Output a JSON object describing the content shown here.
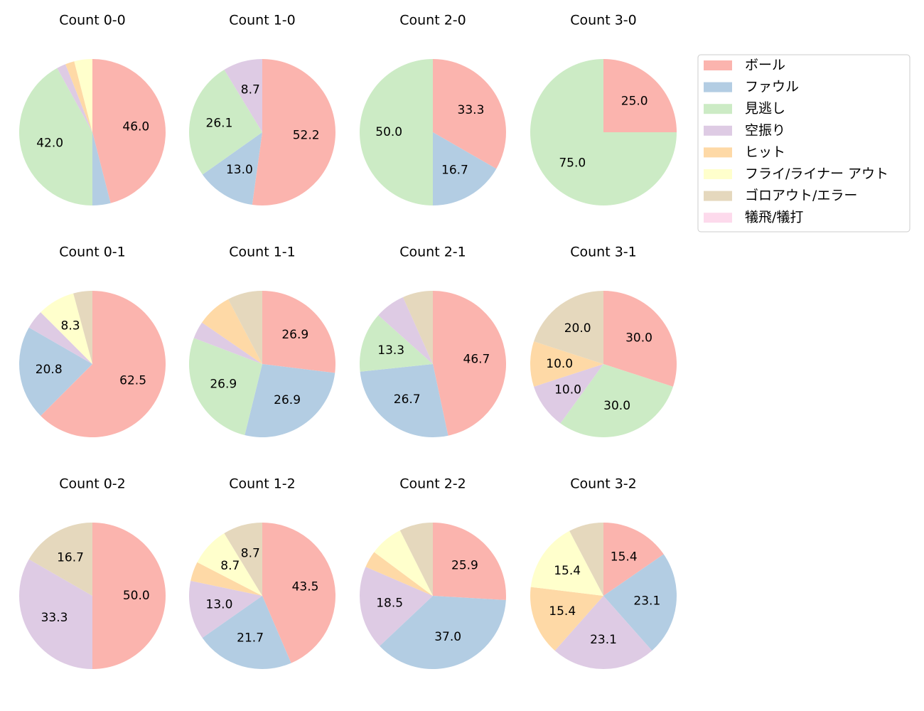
{
  "legend": {
    "labels": [
      "ボール",
      "ファウル",
      "見逃し",
      "空振り",
      "ヒット",
      "フライ/ライナー アウト",
      "ゴロアウト/エラー",
      "犠飛/犠打"
    ],
    "colors": [
      "#fbb4ae",
      "#b3cde3",
      "#ccebc5",
      "#decbe4",
      "#fed9a6",
      "#ffffcc",
      "#e5d8bd",
      "#fddaec"
    ]
  },
  "chart_data": [
    {
      "type": "pie",
      "title": "Count 0-0",
      "values": [
        46.0,
        4.0,
        42.0,
        2.0,
        2.0,
        4.0,
        0,
        0
      ],
      "value_labels": [
        "46.0",
        null,
        "42.0",
        null,
        null,
        null,
        null,
        null
      ]
    },
    {
      "type": "pie",
      "title": "Count 1-0",
      "values": [
        52.2,
        13.0,
        26.1,
        8.7,
        0,
        0,
        0,
        0
      ],
      "value_labels": [
        "52.2",
        "13.0",
        "26.1",
        "8.7",
        null,
        null,
        null,
        null
      ]
    },
    {
      "type": "pie",
      "title": "Count 2-0",
      "values": [
        33.3,
        16.7,
        50.0,
        0,
        0,
        0,
        0,
        0
      ],
      "value_labels": [
        "33.3",
        "16.7",
        "50.0",
        null,
        null,
        null,
        null,
        null
      ]
    },
    {
      "type": "pie",
      "title": "Count 3-0",
      "values": [
        25.0,
        0,
        75.0,
        0,
        0,
        0,
        0,
        0
      ],
      "value_labels": [
        "25.0",
        null,
        "75.0",
        null,
        null,
        null,
        null,
        null
      ]
    },
    {
      "type": "pie",
      "title": "Count 0-1",
      "values": [
        62.5,
        20.8,
        0,
        4.2,
        0,
        8.3,
        4.2,
        0
      ],
      "value_labels": [
        "62.5",
        "20.8",
        null,
        null,
        null,
        "8.3",
        null,
        null
      ]
    },
    {
      "type": "pie",
      "title": "Count 1-1",
      "values": [
        26.9,
        26.9,
        26.9,
        3.8,
        7.7,
        0,
        7.7,
        0
      ],
      "value_labels": [
        "26.9",
        "26.9",
        "26.9",
        null,
        null,
        null,
        null,
        null
      ]
    },
    {
      "type": "pie",
      "title": "Count 2-1",
      "values": [
        46.7,
        26.7,
        13.3,
        6.7,
        0,
        0,
        6.7,
        0
      ],
      "value_labels": [
        "46.7",
        "26.7",
        "13.3",
        null,
        null,
        null,
        null,
        null
      ]
    },
    {
      "type": "pie",
      "title": "Count 3-1",
      "values": [
        30.0,
        0,
        30.0,
        10.0,
        10.0,
        0,
        20.0,
        0
      ],
      "value_labels": [
        "30.0",
        null,
        "30.0",
        "10.0",
        "10.0",
        null,
        "20.0",
        null
      ]
    },
    {
      "type": "pie",
      "title": "Count 0-2",
      "values": [
        50.0,
        0,
        0,
        33.3,
        0,
        0,
        16.7,
        0
      ],
      "value_labels": [
        "50.0",
        null,
        null,
        "33.3",
        null,
        null,
        "16.7",
        null
      ]
    },
    {
      "type": "pie",
      "title": "Count 1-2",
      "values": [
        43.5,
        21.7,
        0,
        13.0,
        4.3,
        8.7,
        8.7,
        0
      ],
      "value_labels": [
        "43.5",
        "21.7",
        null,
        "13.0",
        null,
        "8.7",
        "8.7",
        null
      ]
    },
    {
      "type": "pie",
      "title": "Count 2-2",
      "values": [
        25.9,
        37.0,
        0,
        18.5,
        3.7,
        7.4,
        7.4,
        0
      ],
      "value_labels": [
        "25.9",
        "37.0",
        null,
        "18.5",
        null,
        null,
        null,
        null
      ]
    },
    {
      "type": "pie",
      "title": "Count 3-2",
      "values": [
        15.4,
        23.1,
        0,
        23.1,
        15.4,
        15.4,
        7.7,
        0
      ],
      "value_labels": [
        "15.4",
        "23.1",
        null,
        "23.1",
        "15.4",
        "15.4",
        null,
        null
      ]
    }
  ]
}
